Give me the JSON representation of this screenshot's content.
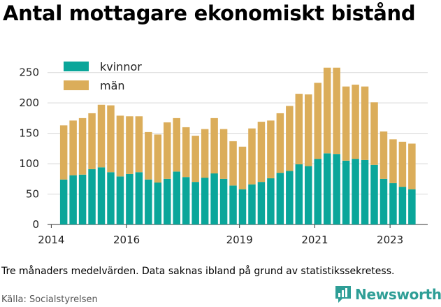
{
  "title": "Antal mottagare ekonomiskt bistånd",
  "note": "Tre månaders medelvärden. Data saknas ibland på grund av statistikssekretess.",
  "source": "Källa: Socialstyrelsen",
  "brand": {
    "name": "Newsworthy",
    "icon": "newsworthy-logo-icon",
    "color": "#2e9e96"
  },
  "chart_data": {
    "type": "bar",
    "stacked": true,
    "ylim": [
      0,
      260
    ],
    "yticks": [
      0,
      50,
      100,
      150,
      200,
      250
    ],
    "xticks": [
      "2014",
      "2016",
      "2019",
      "2021",
      "2023"
    ],
    "xtick_positions": [
      2014,
      2016,
      2019,
      2021,
      2023
    ],
    "x_range": [
      2013.9,
      2024.0
    ],
    "grid": true,
    "legend_position": "top-left",
    "x": [
      2014.33,
      2014.58,
      2014.83,
      2015.08,
      2015.33,
      2015.58,
      2015.83,
      2016.08,
      2016.33,
      2016.58,
      2016.83,
      2017.08,
      2017.33,
      2017.58,
      2017.83,
      2018.08,
      2018.33,
      2018.58,
      2018.83,
      2019.08,
      2019.33,
      2019.58,
      2019.83,
      2020.08,
      2020.33,
      2020.58,
      2020.83,
      2021.08,
      2021.33,
      2021.58,
      2021.83,
      2022.08,
      2022.33,
      2022.58,
      2022.83,
      2023.08,
      2023.33,
      2023.58
    ],
    "series": [
      {
        "name": "kvinnor",
        "color": "#0aa69a",
        "values": [
          74,
          81,
          82,
          91,
          94,
          86,
          79,
          83,
          86,
          74,
          69,
          75,
          87,
          78,
          70,
          77,
          84,
          75,
          64,
          58,
          66,
          70,
          76,
          85,
          88,
          99,
          96,
          108,
          117,
          116,
          105,
          108,
          106,
          98,
          75,
          68,
          62,
          58
        ]
      },
      {
        "name": "män",
        "color": "#dbad5a",
        "values": [
          89,
          90,
          93,
          92,
          103,
          110,
          100,
          95,
          92,
          78,
          79,
          93,
          88,
          82,
          76,
          80,
          91,
          82,
          73,
          70,
          92,
          99,
          95,
          98,
          107,
          116,
          118,
          125,
          141,
          142,
          122,
          122,
          121,
          103,
          78,
          72,
          74,
          75
        ]
      }
    ]
  }
}
